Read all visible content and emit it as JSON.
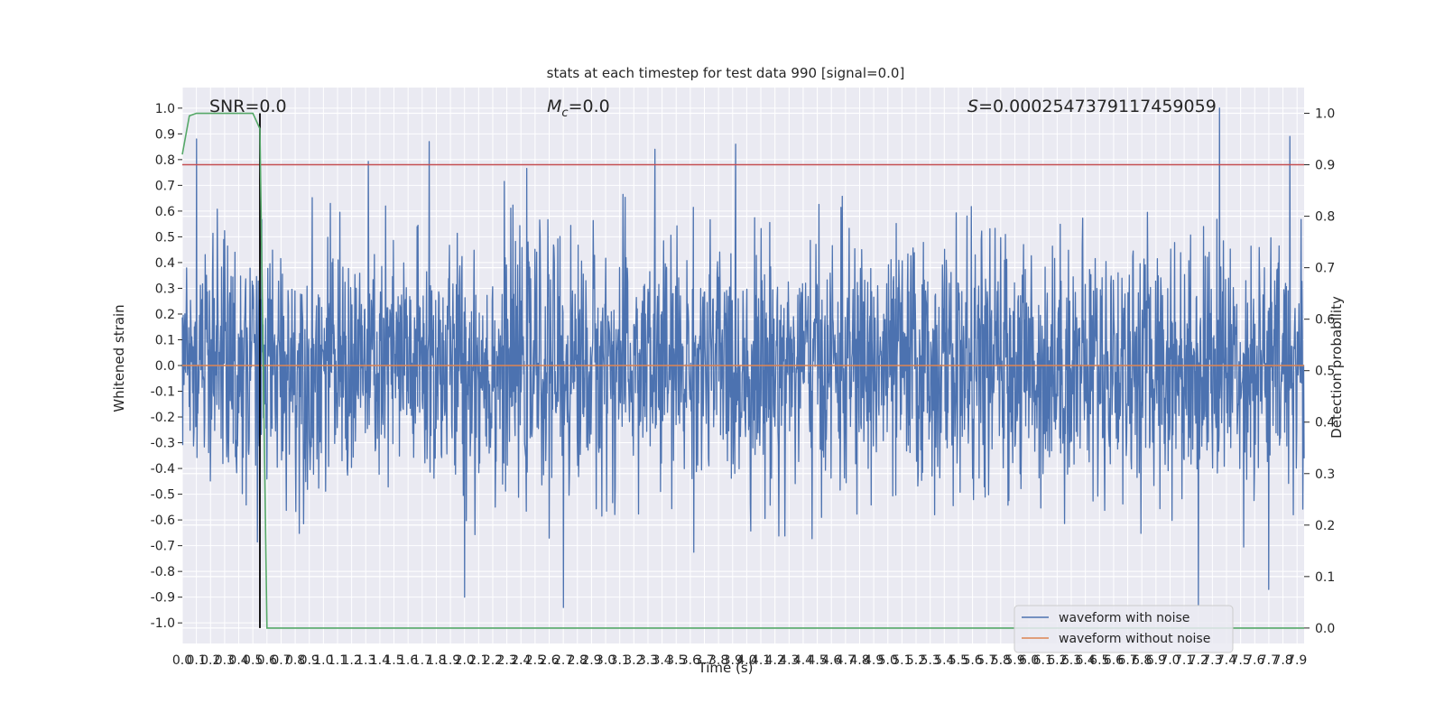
{
  "chart_data": {
    "type": "line",
    "title": "stats at each timestep for test data 990 [signal=0.0]",
    "xlabel": "Time (s)",
    "ylabel": "Whitened strain",
    "y2label": "Detection probability",
    "xlim": [
      0,
      7.95
    ],
    "ylim": [
      -1.08,
      1.08
    ],
    "y2lim": [
      -0.03,
      1.05
    ],
    "x_ticks": [
      "0.0",
      "0.1",
      "0.2",
      "0.3",
      "0.4",
      "0.5",
      "0.6",
      "0.7",
      "0.8",
      "0.9",
      "1.0",
      "1.1",
      "1.2",
      "1.3",
      "1.4",
      "1.5",
      "1.6",
      "1.7",
      "1.8",
      "1.9",
      "2.0",
      "2.1",
      "2.2",
      "2.3",
      "2.4",
      "2.5",
      "2.6",
      "2.7",
      "2.8",
      "2.9",
      "3.0",
      "3.1",
      "3.2",
      "3.3",
      "3.4",
      "3.5",
      "3.6",
      "3.7",
      "3.8",
      "3.9",
      "4.0",
      "4.1",
      "4.2",
      "4.3",
      "4.4",
      "4.5",
      "4.6",
      "4.7",
      "4.8",
      "4.9",
      "5.0",
      "5.1",
      "5.2",
      "5.3",
      "5.4",
      "5.5",
      "5.6",
      "5.7",
      "5.8",
      "5.9",
      "6.0",
      "6.1",
      "6.2",
      "6.3",
      "6.4",
      "6.5",
      "6.6",
      "6.7",
      "6.8",
      "6.9",
      "7.0",
      "7.1",
      "7.2",
      "7.3",
      "7.4",
      "7.5",
      "7.6",
      "7.7",
      "7.8",
      "7.9"
    ],
    "y_ticks": [
      "1.0",
      "0.9",
      "0.8",
      "0.7",
      "0.6",
      "0.5",
      "0.4",
      "0.3",
      "0.2",
      "0.1",
      "0.0",
      "-0.1",
      "-0.2",
      "-0.3",
      "-0.4",
      "-0.5",
      "-0.6",
      "-0.7",
      "-0.8",
      "-0.9",
      "-1.0"
    ],
    "y2_ticks": [
      "1.0",
      "0.9",
      "0.8",
      "0.7",
      "0.6",
      "0.5",
      "0.4",
      "0.3",
      "0.2",
      "0.1",
      "0.0"
    ],
    "annotations": {
      "snr": "SNR=0.0",
      "mc_symbol": "M",
      "mc_sub": "c",
      "mc_value": "=0.0",
      "s_symbol": "S",
      "s_value": "=0.0002547379117459059"
    },
    "threshold_line": {
      "y2": 0.9,
      "color": "#c44e52"
    },
    "marker_line": {
      "x": 0.55,
      "color": "#000000"
    },
    "series": [
      {
        "name": "waveform with noise",
        "color": "#4c72b0",
        "notable_peaks": [
          {
            "x": 0.1,
            "y": 0.88
          },
          {
            "x": 1.75,
            "y": 0.87
          },
          {
            "x": 3.35,
            "y": 0.84
          },
          {
            "x": 7.35,
            "y": 1.0
          },
          {
            "x": 7.85,
            "y": 0.89
          },
          {
            "x": 2.7,
            "y": -0.94
          },
          {
            "x": 7.2,
            "y": -0.93
          },
          {
            "x": 2.0,
            "y": -0.9
          },
          {
            "x": 7.7,
            "y": -0.87
          }
        ]
      },
      {
        "name": "waveform without noise",
        "color": "#dd8452",
        "y": 0.0
      },
      {
        "name": "Detection probability",
        "color": "#55a868",
        "x": [
          0,
          0.05,
          0.1,
          0.2,
          0.3,
          0.4,
          0.5,
          0.55,
          0.6
        ],
        "y": [
          0.92,
          0.995,
          1.0,
          1.0,
          1.0,
          1.0,
          1.0,
          0.97,
          0.0
        ],
        "end_x": 7.95,
        "end_y": 0.0
      }
    ],
    "legend": {
      "position": "bottom-right",
      "entries": [
        "waveform with noise",
        "waveform without noise"
      ]
    },
    "grid": true,
    "background": "#eaeaf2"
  }
}
